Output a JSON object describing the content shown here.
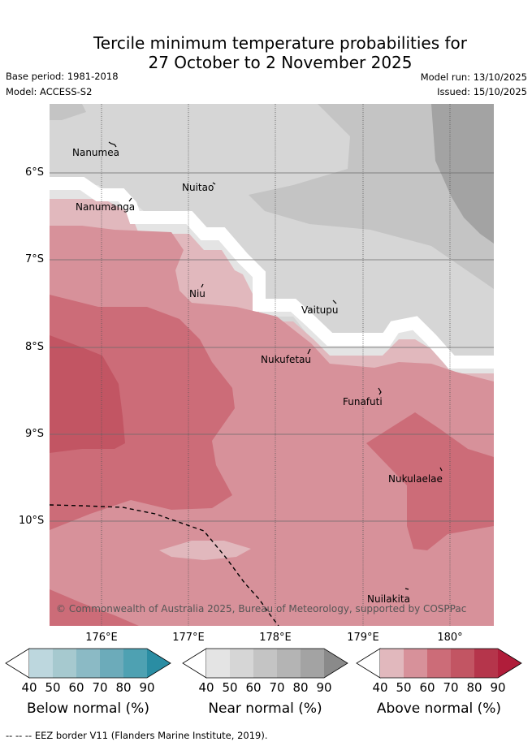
{
  "title": {
    "line1": "Tercile minimum temperature probabilities for",
    "line2": "27 October to 2 November 2025"
  },
  "meta": {
    "base_period": "Base period: 1981-2018",
    "model": "Model: ACCESS-S2",
    "model_run": "Model run: 13/10/2025",
    "issued": "Issued: 15/10/2025"
  },
  "axes": {
    "latitudes": [
      "6°S",
      "7°S",
      "8°S",
      "9°S",
      "10°S"
    ],
    "longitudes": [
      "176°E",
      "177°E",
      "178°E",
      "179°E",
      "180°"
    ]
  },
  "places": [
    "Nanumea",
    "Nuitao",
    "Nanumanga",
    "Niu",
    "Vaitupu",
    "Nukufetau",
    "Funafuti",
    "Nukulaelae",
    "Nuilakita"
  ],
  "copyright": "© Commonwealth of Australia 2025, Bureau of Meteorology, supported by COSPPac",
  "legends": [
    {
      "name": "Below normal (%)",
      "ticks": [
        "40",
        "50",
        "60",
        "70",
        "80",
        "90"
      ],
      "colors": [
        "#bdd7de",
        "#a6c9cf",
        "#8bbac5",
        "#6cabba",
        "#4ea1b2",
        "#2a8da3"
      ]
    },
    {
      "name": "Near normal (%)",
      "ticks": [
        "40",
        "50",
        "60",
        "70",
        "80",
        "90"
      ],
      "colors": [
        "#e4e4e4",
        "#d6d6d6",
        "#c4c4c4",
        "#b4b4b4",
        "#a3a3a3",
        "#8a8a8a"
      ]
    },
    {
      "name": "Above normal (%)",
      "ticks": [
        "40",
        "50",
        "60",
        "70",
        "80",
        "90"
      ],
      "colors": [
        "#e1b8bd",
        "#d7919a",
        "#cc6c78",
        "#c25563",
        "#b5354b",
        "#b01d3a"
      ]
    }
  ],
  "footnote": "--  --  -- EEZ border V11 (Flanders Marine Institute, 2019)."
}
